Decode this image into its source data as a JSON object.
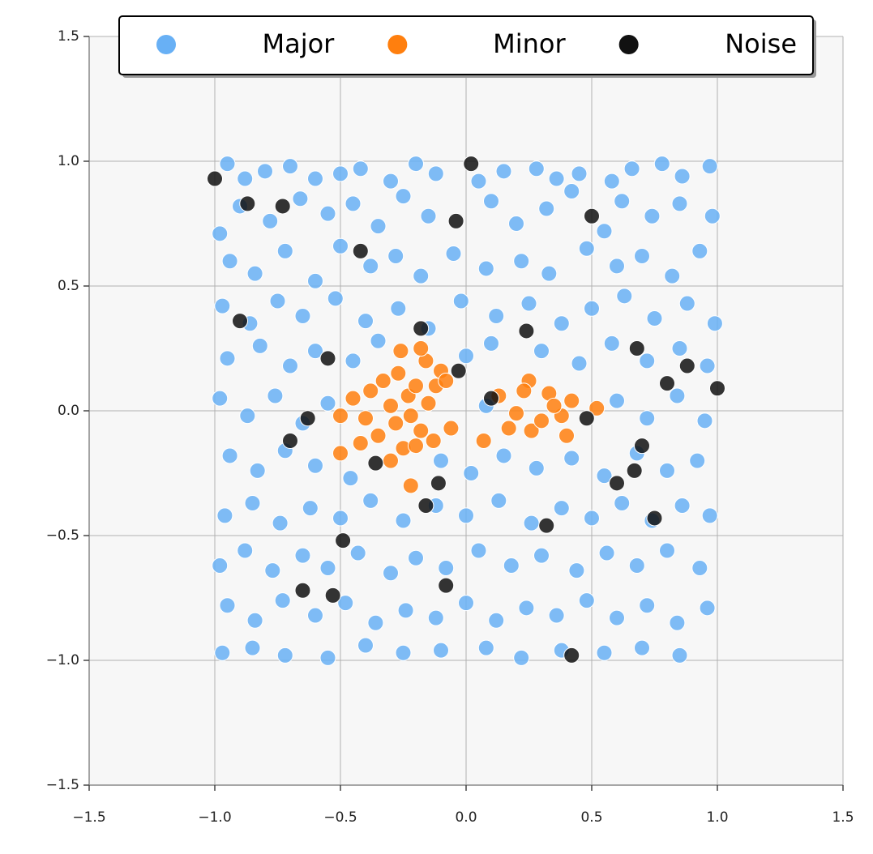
{
  "chart_data": {
    "type": "scatter",
    "grid": true,
    "legend": "top",
    "xlim": [
      -1.5,
      1.5
    ],
    "ylim": [
      -1.5,
      1.5
    ],
    "xticks": [
      {
        "value": -1.5,
        "label": "−1.5"
      },
      {
        "value": -1,
        "label": "−1.0"
      },
      {
        "value": -0.5,
        "label": "−0.5"
      },
      {
        "value": 0,
        "label": "0.0"
      },
      0.5,
      {
        "value": 1,
        "label": "1.0"
      },
      1.5
    ],
    "yticks": [
      {
        "value": -1.5,
        "label": "−1.5"
      },
      {
        "value": -1,
        "label": "−1.0"
      },
      {
        "value": -0.5,
        "label": "−0.5"
      },
      {
        "value": 0,
        "label": "0.0"
      },
      0.5,
      {
        "value": 1,
        "label": "1.0"
      },
      1.5
    ],
    "series": [
      {
        "name": "Major",
        "color": "#68b0f5",
        "x": [
          -0.95,
          -0.88,
          -0.8,
          -0.7,
          -0.6,
          -0.5,
          -0.42,
          -0.3,
          -0.2,
          -0.12,
          0.05,
          0.15,
          0.28,
          0.36,
          0.45,
          0.58,
          0.66,
          0.78,
          0.86,
          0.97,
          -0.98,
          -0.9,
          -0.78,
          -0.66,
          -0.55,
          -0.45,
          -0.35,
          -0.25,
          -0.15,
          0.1,
          0.2,
          0.32,
          0.42,
          0.55,
          0.62,
          0.74,
          0.85,
          0.98,
          -0.94,
          -0.84,
          -0.72,
          -0.6,
          -0.5,
          -0.38,
          -0.28,
          -0.18,
          -0.05,
          0.08,
          0.22,
          0.33,
          0.48,
          0.6,
          0.7,
          0.82,
          0.93,
          -0.97,
          -0.86,
          -0.75,
          -0.65,
          -0.52,
          -0.4,
          -0.27,
          -0.15,
          -0.02,
          0.12,
          0.25,
          0.38,
          0.5,
          0.63,
          0.75,
          0.88,
          0.99,
          -0.95,
          -0.82,
          -0.7,
          -0.6,
          -0.45,
          -0.35,
          0.0,
          0.1,
          0.3,
          0.45,
          0.58,
          0.72,
          0.85,
          0.96,
          -0.98,
          -0.87,
          -0.76,
          -0.65,
          -0.55,
          0.08,
          0.6,
          0.72,
          0.84,
          0.95,
          -0.94,
          -0.83,
          -0.72,
          -0.6,
          -0.46,
          -0.1,
          0.02,
          0.15,
          0.28,
          0.42,
          0.55,
          0.68,
          0.8,
          0.92,
          -0.96,
          -0.85,
          -0.74,
          -0.62,
          -0.5,
          -0.38,
          -0.25,
          -0.12,
          0.0,
          0.13,
          0.26,
          0.38,
          0.5,
          0.62,
          0.74,
          0.86,
          0.97,
          -0.98,
          -0.88,
          -0.77,
          -0.65,
          -0.55,
          -0.43,
          -0.3,
          -0.2,
          -0.08,
          0.05,
          0.18,
          0.3,
          0.44,
          0.56,
          0.68,
          0.8,
          0.93,
          -0.95,
          -0.84,
          -0.73,
          -0.6,
          -0.48,
          -0.36,
          -0.24,
          -0.12,
          0.0,
          0.12,
          0.24,
          0.36,
          0.48,
          0.6,
          0.72,
          0.84,
          0.96,
          -0.97,
          -0.85,
          -0.72,
          -0.55,
          -0.4,
          -0.25,
          -0.1,
          0.08,
          0.22,
          0.38,
          0.55,
          0.7,
          0.85
        ],
        "values": [
          0.99,
          0.93,
          0.96,
          0.98,
          0.93,
          0.95,
          0.97,
          0.92,
          0.99,
          0.95,
          0.92,
          0.96,
          0.97,
          0.93,
          0.95,
          0.92,
          0.97,
          0.99,
          0.94,
          0.98,
          0.71,
          0.82,
          0.76,
          0.85,
          0.79,
          0.83,
          0.74,
          0.86,
          0.78,
          0.84,
          0.75,
          0.81,
          0.88,
          0.72,
          0.84,
          0.78,
          0.83,
          0.78,
          0.6,
          0.55,
          0.64,
          0.52,
          0.66,
          0.58,
          0.62,
          0.54,
          0.63,
          0.57,
          0.6,
          0.55,
          0.65,
          0.58,
          0.62,
          0.54,
          0.64,
          0.42,
          0.35,
          0.44,
          0.38,
          0.45,
          0.36,
          0.41,
          0.33,
          0.44,
          0.38,
          0.43,
          0.35,
          0.41,
          0.46,
          0.37,
          0.43,
          0.35,
          0.21,
          0.26,
          0.18,
          0.24,
          0.2,
          0.28,
          0.22,
          0.27,
          0.24,
          0.19,
          0.27,
          0.2,
          0.25,
          0.18,
          0.05,
          -0.02,
          0.06,
          -0.05,
          0.03,
          0.02,
          0.04,
          -0.03,
          0.06,
          -0.04,
          -0.18,
          -0.24,
          -0.16,
          -0.22,
          -0.27,
          -0.2,
          -0.25,
          -0.18,
          -0.23,
          -0.19,
          -0.26,
          -0.17,
          -0.24,
          -0.2,
          -0.42,
          -0.37,
          -0.45,
          -0.39,
          -0.43,
          -0.36,
          -0.44,
          -0.38,
          -0.42,
          -0.36,
          -0.45,
          -0.39,
          -0.43,
          -0.37,
          -0.44,
          -0.38,
          -0.42,
          -0.62,
          -0.56,
          -0.64,
          -0.58,
          -0.63,
          -0.57,
          -0.65,
          -0.59,
          -0.63,
          -0.56,
          -0.62,
          -0.58,
          -0.64,
          -0.57,
          -0.62,
          -0.56,
          -0.63,
          -0.78,
          -0.84,
          -0.76,
          -0.82,
          -0.77,
          -0.85,
          -0.8,
          -0.83,
          -0.77,
          -0.84,
          -0.79,
          -0.82,
          -0.76,
          -0.83,
          -0.78,
          -0.85,
          -0.79,
          -0.97,
          -0.95,
          -0.98,
          -0.99,
          -0.94,
          -0.97,
          -0.96,
          -0.95,
          -0.99,
          -0.96,
          -0.97,
          -0.95,
          -0.98
        ]
      },
      {
        "name": "Minor",
        "color": "#ff7f0e",
        "x": [
          -0.45,
          -0.4,
          -0.38,
          -0.35,
          -0.33,
          -0.3,
          -0.28,
          -0.27,
          -0.25,
          -0.23,
          -0.22,
          -0.2,
          -0.18,
          -0.16,
          -0.15,
          -0.13,
          -0.12,
          -0.1,
          -0.08,
          -0.26,
          -0.18,
          -0.3,
          -0.22,
          -0.2,
          -0.5,
          -0.5,
          -0.42,
          -0.06,
          0.07,
          0.13,
          0.17,
          0.2,
          0.25,
          0.26,
          0.3,
          0.33,
          0.38,
          0.4,
          0.42,
          0.52,
          0.35,
          0.23
        ],
        "values": [
          0.05,
          -0.03,
          0.08,
          -0.1,
          0.12,
          0.02,
          -0.05,
          0.15,
          -0.15,
          0.06,
          -0.02,
          0.1,
          -0.08,
          0.2,
          0.03,
          -0.12,
          0.1,
          0.16,
          0.12,
          0.24,
          0.25,
          -0.2,
          -0.3,
          -0.14,
          -0.02,
          -0.17,
          -0.13,
          -0.07,
          -0.12,
          0.06,
          -0.07,
          -0.01,
          0.12,
          -0.08,
          -0.04,
          0.07,
          -0.02,
          -0.1,
          0.04,
          0.01,
          0.02,
          0.08
        ]
      },
      {
        "name": "Noise",
        "color": "#111111",
        "x": [
          -1.0,
          -0.87,
          -0.73,
          -0.42,
          -0.04,
          0.02,
          0.5,
          -0.9,
          -0.55,
          -0.18,
          -0.03,
          0.24,
          0.68,
          0.8,
          0.88,
          1.0,
          -0.63,
          -0.7,
          0.1,
          0.48,
          0.7,
          0.6,
          0.67,
          0.75,
          -0.36,
          -0.11,
          -0.16,
          0.32,
          -0.49,
          -0.65,
          -0.53,
          -0.08,
          0.42
        ],
        "values": [
          0.93,
          0.83,
          0.82,
          0.64,
          0.76,
          0.99,
          0.78,
          0.36,
          0.21,
          0.33,
          0.16,
          0.32,
          0.25,
          0.11,
          0.18,
          0.09,
          -0.03,
          -0.12,
          0.05,
          -0.03,
          -0.14,
          -0.29,
          -0.24,
          -0.43,
          -0.21,
          -0.29,
          -0.38,
          -0.46,
          -0.52,
          -0.72,
          -0.74,
          -0.7,
          -0.98
        ]
      }
    ]
  }
}
